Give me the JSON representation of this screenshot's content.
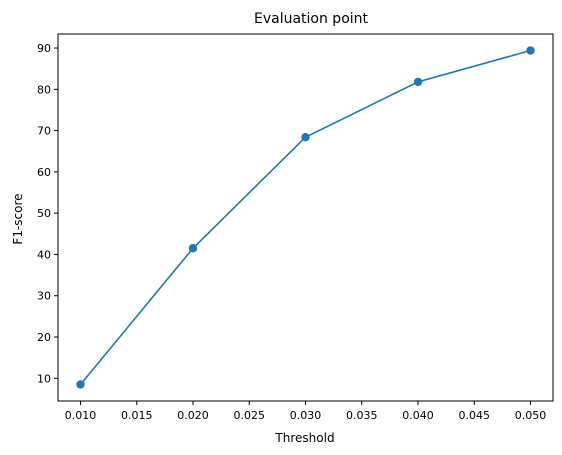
{
  "chart_data": {
    "type": "line",
    "title": "Evaluation point",
    "xlabel": "Threshold",
    "ylabel": "F1-score",
    "x": [
      0.01,
      0.02,
      0.03,
      0.04,
      0.05
    ],
    "series": [
      {
        "values": [
          8.5,
          41.5,
          68.4,
          81.8,
          89.4
        ]
      }
    ],
    "xlim": [
      0.008,
      0.052
    ],
    "ylim": [
      4.5,
      93.4
    ],
    "xticks": [
      0.01,
      0.015,
      0.02,
      0.025,
      0.03,
      0.035,
      0.04,
      0.045,
      0.05
    ],
    "xtick_labels": [
      "0.010",
      "0.015",
      "0.020",
      "0.025",
      "0.030",
      "0.035",
      "0.040",
      "0.045",
      "0.050"
    ],
    "yticks": [
      10,
      20,
      30,
      40,
      50,
      60,
      70,
      80,
      90
    ],
    "ytick_labels": [
      "10",
      "20",
      "30",
      "40",
      "50",
      "60",
      "70",
      "80",
      "90"
    ],
    "grid": false,
    "line_color": "#1f77b4",
    "marker": "circle"
  }
}
